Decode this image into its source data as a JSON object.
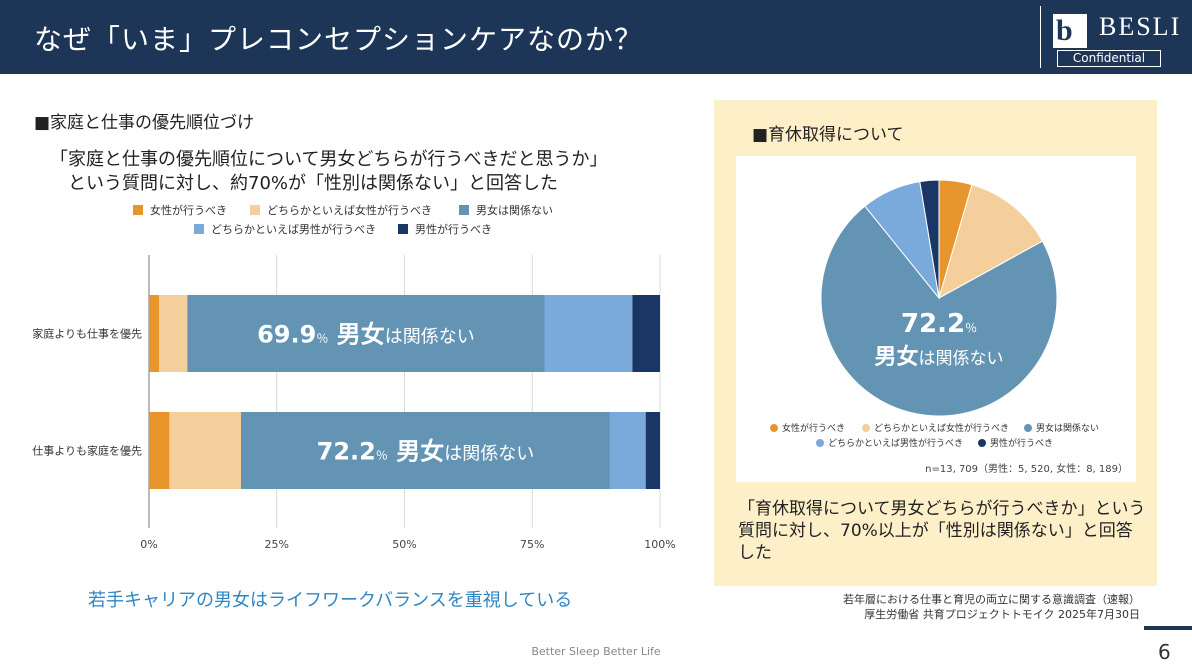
{
  "header": {
    "title": "なぜ「いま」プレコンセプションケアなのか？",
    "logo_text": "BESLI",
    "logo_badge": "Confidential"
  },
  "left": {
    "section_title": "■家庭と仕事の優先順位づけ",
    "lead_line1": "「家庭と仕事の優先順位について男女どちらが行うべきだと思うか」",
    "lead_line2": "　という質問に対し、約70%が「性別は関係ない」と回答した",
    "footer_message": "若手キャリアの男女はライフワークバランスを重視している"
  },
  "right": {
    "section_title": "■育休取得について",
    "description": "「育休取得について男女どちらが行うべきか」という質問に対し、70%以上が「性別は関係ない」と回答した"
  },
  "source": {
    "line1": "若年層における仕事と育児の両立に関する意識調査（速報）",
    "line2": "厚生労働省 共育プロジェクトトモイク 2025年7月30日"
  },
  "footer": {
    "tagline": "Better Sleep Better Life",
    "page_number": "6"
  },
  "colors": {
    "header_bg": "#1d3557",
    "female": "#e6962d",
    "rather_female": "#f5cf9b",
    "no_difference": "#6494b4",
    "rather_male": "#7aaadc",
    "male": "#1a3664",
    "accent_text": "#2f86c4"
  },
  "chart_data": [
    {
      "type": "bar",
      "orientation": "horizontal",
      "stacked": true,
      "legend_position": "top",
      "legend": [
        "女性が行うべき",
        "どちらかといえば女性が行うべき",
        "男女は関係ない",
        "どちらかといえば男性が行うべき",
        "男性が行うべき"
      ],
      "categories": [
        "家庭よりも仕事を優先",
        "仕事よりも家庭を優先"
      ],
      "series": [
        {
          "name": "女性が行うべき",
          "values": [
            2,
            4
          ]
        },
        {
          "name": "どちらかといえば女性が行うべき",
          "values": [
            5.5,
            14
          ]
        },
        {
          "name": "男女は関係ない",
          "values": [
            69.9,
            72.2
          ]
        },
        {
          "name": "どちらかといえば男性が行うべき",
          "values": [
            17.2,
            7
          ]
        },
        {
          "name": "男性が行うべき",
          "values": [
            5.4,
            2.8
          ]
        }
      ],
      "xlim": [
        0,
        100
      ],
      "x_ticks": [
        "0%",
        "25%",
        "50%",
        "75%",
        "100%"
      ],
      "grid": true,
      "annotations": [
        {
          "value": "69.9",
          "unit": "％",
          "emph": "男女",
          "suffix": "は関係ない"
        },
        {
          "value": "72.2",
          "unit": "％",
          "emph": "男女",
          "suffix": "は関係ない"
        }
      ]
    },
    {
      "type": "pie",
      "legend_position": "bottom",
      "labels": [
        "女性が行うべき",
        "どちらかといえば女性が行うべき",
        "男女は関係ない",
        "どちらかといえば男性が行うべき",
        "男性が行うべき"
      ],
      "values": [
        4.5,
        12.5,
        72.2,
        8.2,
        2.6
      ],
      "center_label": {
        "value": "72.2",
        "unit": "％",
        "emph": "男女",
        "suffix": "は関係ない"
      },
      "note": "n=13, 709（男性：5, 520, 女性：8, 189）"
    }
  ]
}
